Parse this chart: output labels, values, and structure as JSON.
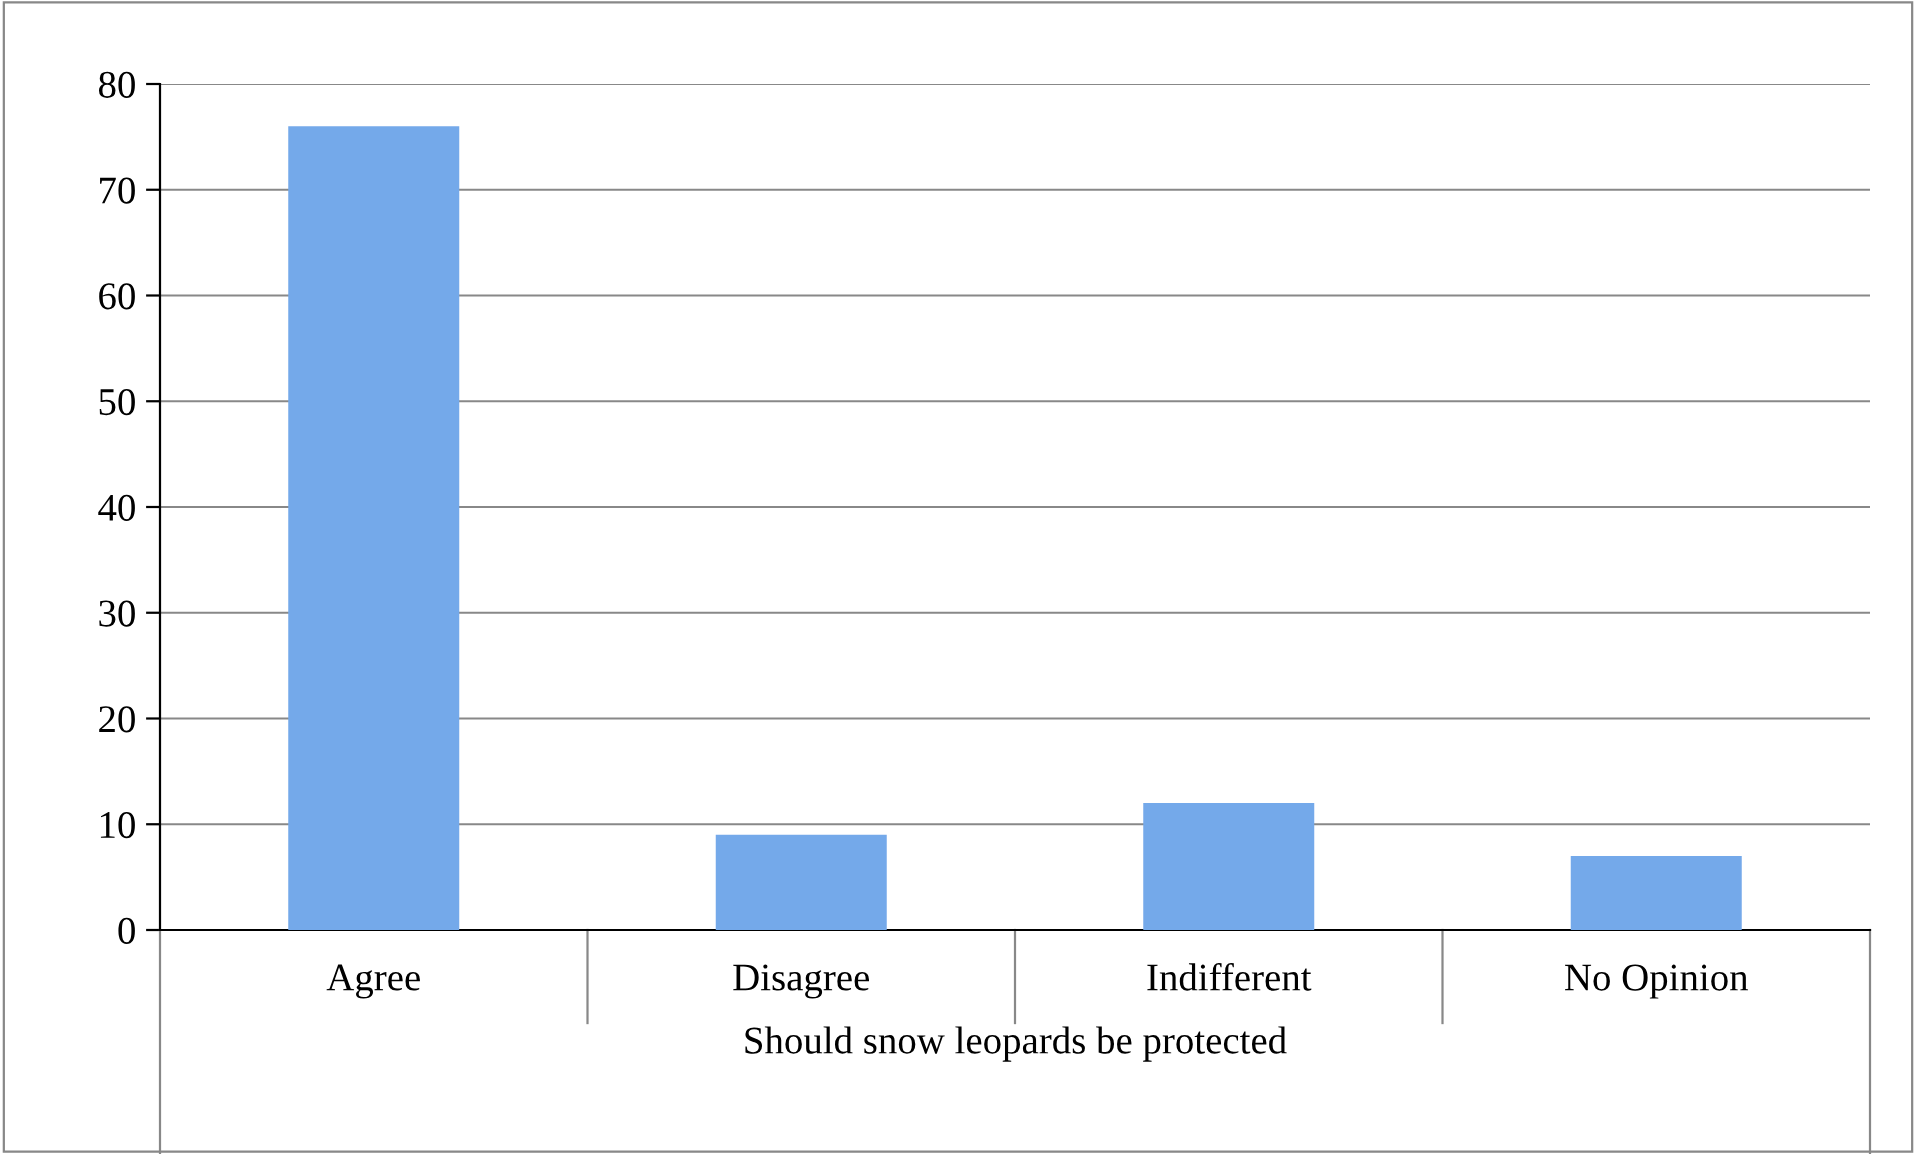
{
  "chart_data": {
    "type": "bar",
    "xlabel": "Should snow leopards be protected",
    "categories": [
      "Agree",
      "Disagree",
      "Indifferent",
      "No Opinion"
    ],
    "values": [
      76,
      9,
      12,
      7
    ],
    "color": "#74a9ea",
    "ylim": [
      0,
      80
    ],
    "yticks": [
      0,
      10,
      20,
      30,
      40,
      50,
      60,
      70,
      80
    ],
    "grid": "y",
    "legend": false
  }
}
